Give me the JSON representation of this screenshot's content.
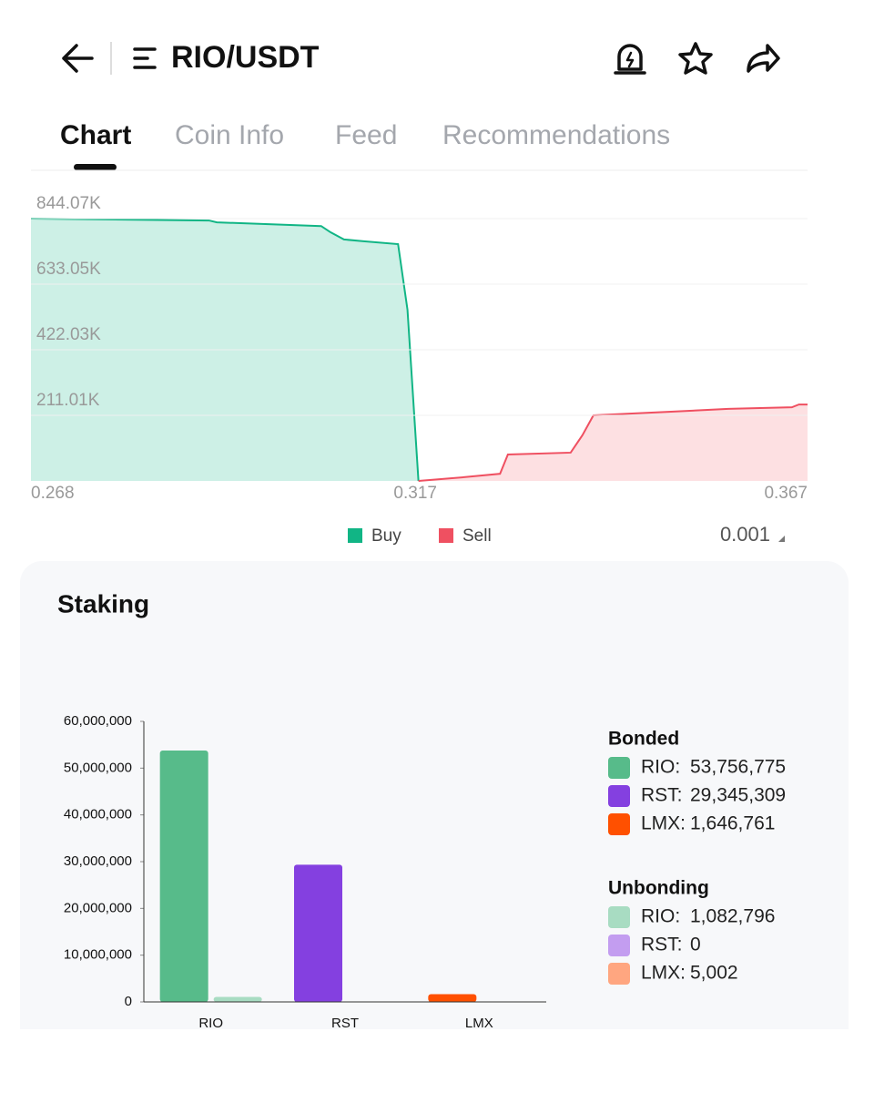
{
  "header": {
    "title": "RIO/USDT"
  },
  "tabs": [
    "Chart",
    "Coin Info",
    "Feed",
    "Recommendations"
  ],
  "precision": "0.001",
  "chart_data": [
    {
      "type": "area",
      "xlim": [
        0.268,
        0.367
      ],
      "xticks": [
        0.268,
        0.317,
        0.367
      ],
      "ylim": [
        0,
        844070
      ],
      "yticks": [
        {
          "value": 211010,
          "label": "211.01K"
        },
        {
          "value": 422030,
          "label": "422.03K"
        },
        {
          "value": 633050,
          "label": "633.05K"
        },
        {
          "value": 844070,
          "label": "844.07K"
        }
      ],
      "grid": true,
      "series": [
        {
          "name": "Buy",
          "color": "#11b585",
          "fill_color": "#cdf0e6",
          "x": [
            0.268,
            0.2907,
            0.2917,
            0.305,
            0.3062,
            0.3079,
            0.3104,
            0.3148,
            0.316,
            0.3174
          ],
          "values": [
            844070,
            838000,
            832000,
            820000,
            800000,
            777000,
            771000,
            762000,
            551000,
            0
          ]
        },
        {
          "name": "Sell",
          "color": "#ef5061",
          "fill_color": "#fde0e2",
          "x": [
            0.3174,
            0.3232,
            0.3278,
            0.3288,
            0.3368,
            0.3383,
            0.3397,
            0.3499,
            0.3569,
            0.365,
            0.3659,
            0.367
          ],
          "values": [
            0,
            12000,
            23000,
            85000,
            91000,
            147000,
            211000,
            223000,
            232000,
            237000,
            246000,
            246000
          ]
        }
      ]
    },
    {
      "type": "bar",
      "title": "Staking",
      "categories": [
        "RIO",
        "RST",
        "LMX"
      ],
      "legend_labels": [
        "RIO:",
        "RST:",
        "LMX:"
      ],
      "ylim": [
        0,
        60000000
      ],
      "yticks": [
        0,
        {
          "value": 10000000,
          "label": "10,000,000"
        },
        {
          "value": 20000000,
          "label": "20,000,000"
        },
        {
          "value": 30000000,
          "label": "30,000,000"
        },
        {
          "value": 40000000,
          "label": "40,000,000"
        },
        {
          "value": 50000000,
          "label": "50,000,000"
        },
        {
          "value": 60000000,
          "label": "60,000,000"
        }
      ],
      "series": [
        {
          "name": "Bonded",
          "colors": [
            "#57bb8a",
            "#8440e0",
            "#ff5000"
          ],
          "values": [
            53756775,
            29345309,
            1646761
          ],
          "value_labels": [
            "53,756,775",
            "29,345,309",
            "1,646,761"
          ]
        },
        {
          "name": "Unbonding",
          "colors": [
            "#a8dcc2",
            "#c39df0",
            "#ffa680"
          ],
          "values": [
            1082796,
            0,
            5002
          ],
          "value_labels": [
            "1,082,796",
            "0",
            "5,002"
          ]
        }
      ]
    }
  ]
}
